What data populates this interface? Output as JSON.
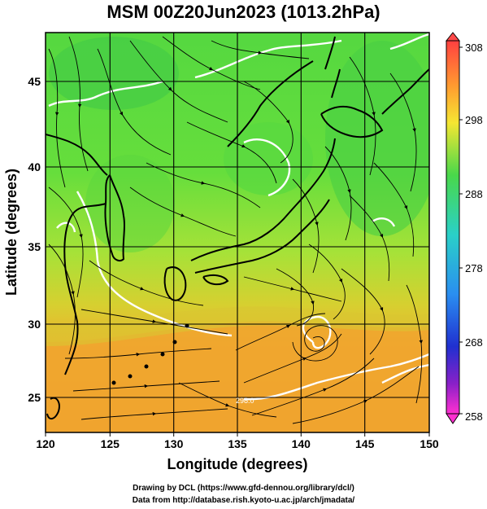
{
  "title": "MSM 00Z20Jun2023 (1013.2hPa)",
  "x_axis": {
    "label": "Longitude (degrees)",
    "range": [
      120,
      150
    ],
    "ticks": [
      "120",
      "125",
      "130",
      "135",
      "140",
      "145",
      "150"
    ]
  },
  "y_axis": {
    "label": "Latitude  (degrees)",
    "range": [
      22.4,
      47.6
    ],
    "ticks": [
      "25",
      "30",
      "35",
      "40",
      "45"
    ]
  },
  "colorbar": {
    "range": [
      258,
      308
    ],
    "labels": [
      "308",
      "298",
      "288",
      "278",
      "268",
      "258"
    ]
  },
  "contour_label": "298.0",
  "credits": {
    "line1": "Drawing by DCL (https://www.gfd-dennou.org/library/dcl/)",
    "line2": "Data from http://database.rish.kyoto-u.ac.jp/arch/jmadata/"
  },
  "colors": {
    "cool_land": "#4fd23a",
    "mid_green": "#6ee83c",
    "warm_band": "#f2a72e",
    "contour": "#ffffff",
    "coast": "#000000"
  }
}
